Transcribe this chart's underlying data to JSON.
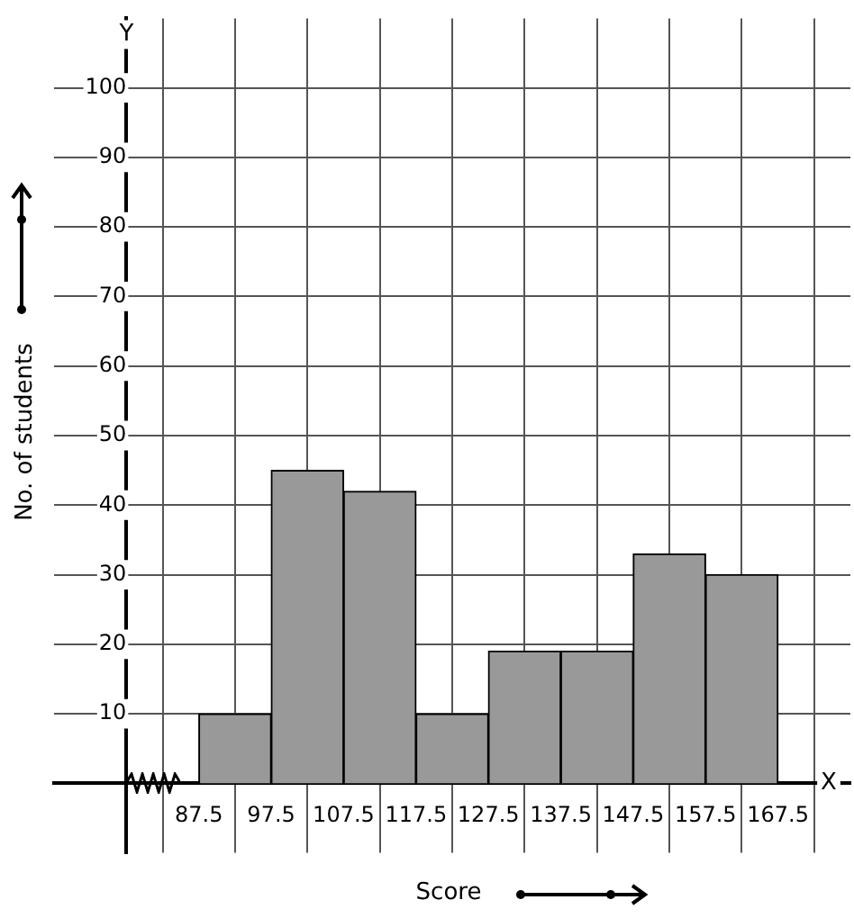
{
  "chart_data": {
    "type": "histogram",
    "xlabel": "Score",
    "ylabel": "No. of students",
    "bins": [
      87.5,
      97.5,
      107.5,
      117.5,
      127.5,
      137.5,
      147.5,
      157.5,
      167.5
    ],
    "values": [
      10,
      45,
      42,
      10,
      19,
      19,
      33,
      30
    ],
    "color": "#999999",
    "xlim": [
      67.5,
      177.5
    ],
    "xticks": [
      87.5,
      97.5,
      107.5,
      117.5,
      127.5,
      137.5,
      147.5,
      157.5,
      167.5
    ],
    "ylim": [
      -10,
      110
    ],
    "yticks": [
      10,
      20,
      30,
      40,
      50,
      60,
      70,
      80,
      90,
      100
    ],
    "annotations": [
      "Y",
      "X"
    ],
    "grid": true
  }
}
